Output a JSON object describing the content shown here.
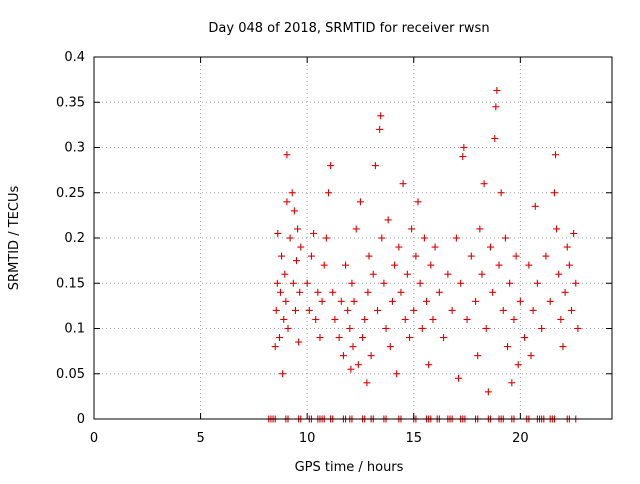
{
  "chart_data": {
    "type": "scatter",
    "title": "Day 048 of 2018, SRMTID for receiver rwsn",
    "xlabel": "GPS time / hours",
    "ylabel": "SRMTID / TECUs",
    "xlim": [
      0,
      24.3
    ],
    "ylim": [
      0,
      0.4
    ],
    "x_ticks": [
      0,
      5,
      10,
      15,
      20
    ],
    "x_tick_labels": [
      "0",
      "5",
      "10",
      "15",
      "20"
    ],
    "y_ticks": [
      0,
      0.05,
      0.1,
      0.15,
      0.2,
      0.25,
      0.3,
      0.35,
      0.4
    ],
    "y_tick_labels": [
      "0",
      "0.05",
      "0.1",
      "0.15",
      "0.2",
      "0.25",
      "0.3",
      "0.35",
      "0.4"
    ],
    "grid": true,
    "marker": "+",
    "color": "#dd0000",
    "series": [
      {
        "name": "SRMTID",
        "points": [
          [
            8.5,
            0.08
          ],
          [
            8.55,
            0.12
          ],
          [
            8.6,
            0.15
          ],
          [
            8.62,
            0.205
          ],
          [
            8.7,
            0.09
          ],
          [
            8.75,
            0.14
          ],
          [
            8.8,
            0.18
          ],
          [
            8.85,
            0.05
          ],
          [
            8.9,
            0.11
          ],
          [
            8.95,
            0.16
          ],
          [
            9.0,
            0.13
          ],
          [
            9.05,
            0.24
          ],
          [
            9.05,
            0.292
          ],
          [
            9.1,
            0.1
          ],
          [
            9.2,
            0.2
          ],
          [
            9.3,
            0.25
          ],
          [
            9.35,
            0.15
          ],
          [
            9.4,
            0.23
          ],
          [
            9.45,
            0.12
          ],
          [
            9.5,
            0.175
          ],
          [
            9.55,
            0.21
          ],
          [
            9.6,
            0.085
          ],
          [
            9.65,
            0.14
          ],
          [
            9.7,
            0.19
          ],
          [
            10.0,
            0.15
          ],
          [
            10.1,
            0.12
          ],
          [
            10.2,
            0.18
          ],
          [
            10.3,
            0.205
          ],
          [
            10.4,
            0.11
          ],
          [
            10.5,
            0.14
          ],
          [
            10.6,
            0.09
          ],
          [
            10.7,
            0.13
          ],
          [
            10.8,
            0.17
          ],
          [
            10.9,
            0.2
          ],
          [
            11.0,
            0.25
          ],
          [
            11.1,
            0.28
          ],
          [
            11.2,
            0.14
          ],
          [
            11.3,
            0.11
          ],
          [
            11.5,
            0.09
          ],
          [
            11.6,
            0.13
          ],
          [
            11.7,
            0.07
          ],
          [
            11.8,
            0.17
          ],
          [
            11.9,
            0.12
          ],
          [
            12.0,
            0.1
          ],
          [
            12.05,
            0.055
          ],
          [
            12.1,
            0.15
          ],
          [
            12.15,
            0.08
          ],
          [
            12.2,
            0.13
          ],
          [
            12.3,
            0.21
          ],
          [
            12.4,
            0.06
          ],
          [
            12.5,
            0.24
          ],
          [
            12.6,
            0.09
          ],
          [
            12.7,
            0.11
          ],
          [
            12.8,
            0.04
          ],
          [
            12.85,
            0.14
          ],
          [
            12.9,
            0.18
          ],
          [
            13.0,
            0.07
          ],
          [
            13.1,
            0.16
          ],
          [
            13.2,
            0.28
          ],
          [
            13.3,
            0.12
          ],
          [
            13.4,
            0.32
          ],
          [
            13.45,
            0.335
          ],
          [
            13.5,
            0.2
          ],
          [
            13.6,
            0.15
          ],
          [
            13.7,
            0.1
          ],
          [
            13.8,
            0.22
          ],
          [
            13.9,
            0.08
          ],
          [
            14.0,
            0.13
          ],
          [
            14.1,
            0.17
          ],
          [
            14.2,
            0.05
          ],
          [
            14.3,
            0.19
          ],
          [
            14.4,
            0.14
          ],
          [
            14.5,
            0.26
          ],
          [
            14.6,
            0.11
          ],
          [
            14.7,
            0.16
          ],
          [
            14.8,
            0.09
          ],
          [
            14.9,
            0.21
          ],
          [
            15.0,
            0.12
          ],
          [
            15.1,
            0.18
          ],
          [
            15.2,
            0.24
          ],
          [
            15.3,
            0.15
          ],
          [
            15.4,
            0.1
          ],
          [
            15.5,
            0.2
          ],
          [
            15.6,
            0.13
          ],
          [
            15.7,
            0.06
          ],
          [
            15.8,
            0.17
          ],
          [
            15.9,
            0.11
          ],
          [
            16.0,
            0.19
          ],
          [
            16.2,
            0.14
          ],
          [
            16.4,
            0.09
          ],
          [
            16.6,
            0.16
          ],
          [
            16.8,
            0.12
          ],
          [
            17.0,
            0.2
          ],
          [
            17.1,
            0.045
          ],
          [
            17.2,
            0.15
          ],
          [
            17.3,
            0.29
          ],
          [
            17.35,
            0.3
          ],
          [
            17.5,
            0.11
          ],
          [
            17.7,
            0.18
          ],
          [
            17.9,
            0.13
          ],
          [
            18.0,
            0.07
          ],
          [
            18.1,
            0.21
          ],
          [
            18.2,
            0.16
          ],
          [
            18.3,
            0.26
          ],
          [
            18.4,
            0.1
          ],
          [
            18.5,
            0.03
          ],
          [
            18.6,
            0.19
          ],
          [
            18.7,
            0.14
          ],
          [
            18.8,
            0.31
          ],
          [
            18.85,
            0.345
          ],
          [
            18.9,
            0.363
          ],
          [
            19.0,
            0.17
          ],
          [
            19.1,
            0.25
          ],
          [
            19.2,
            0.12
          ],
          [
            19.3,
            0.2
          ],
          [
            19.4,
            0.08
          ],
          [
            19.5,
            0.15
          ],
          [
            19.6,
            0.04
          ],
          [
            19.7,
            0.11
          ],
          [
            19.8,
            0.18
          ],
          [
            19.9,
            0.06
          ],
          [
            20.0,
            0.13
          ],
          [
            20.2,
            0.09
          ],
          [
            20.4,
            0.17
          ],
          [
            20.5,
            0.07
          ],
          [
            20.6,
            0.12
          ],
          [
            20.7,
            0.235
          ],
          [
            20.8,
            0.15
          ],
          [
            21.0,
            0.1
          ],
          [
            21.2,
            0.18
          ],
          [
            21.4,
            0.13
          ],
          [
            21.6,
            0.25
          ],
          [
            21.65,
            0.292
          ],
          [
            21.7,
            0.21
          ],
          [
            21.8,
            0.16
          ],
          [
            21.9,
            0.11
          ],
          [
            22.0,
            0.08
          ],
          [
            22.1,
            0.14
          ],
          [
            22.2,
            0.19
          ],
          [
            22.3,
            0.17
          ],
          [
            22.4,
            0.12
          ],
          [
            22.5,
            0.205
          ],
          [
            22.6,
            0.15
          ],
          [
            22.7,
            0.1
          ]
        ],
        "zero_points_x": [
          8.2,
          8.3,
          8.4,
          8.5,
          9.0,
          9.1,
          9.6,
          9.7,
          10.1,
          10.2,
          10.5,
          10.6,
          10.7,
          10.8,
          11.1,
          11.2,
          11.7,
          11.8,
          12.0,
          12.1,
          12.6,
          12.7,
          13.0,
          13.1,
          13.6,
          13.7,
          14.3,
          14.4,
          15.0,
          15.1,
          15.6,
          15.7,
          15.8,
          16.1,
          16.2,
          16.6,
          16.7,
          16.8,
          17.2,
          17.3,
          17.4,
          17.9,
          18.0,
          18.5,
          18.6,
          19.0,
          19.1,
          19.2,
          19.6,
          19.7,
          20.3,
          20.4,
          20.8,
          20.9,
          21.0,
          21.1,
          21.4,
          21.5,
          21.6,
          22.2,
          22.3,
          22.6
        ]
      }
    ]
  }
}
